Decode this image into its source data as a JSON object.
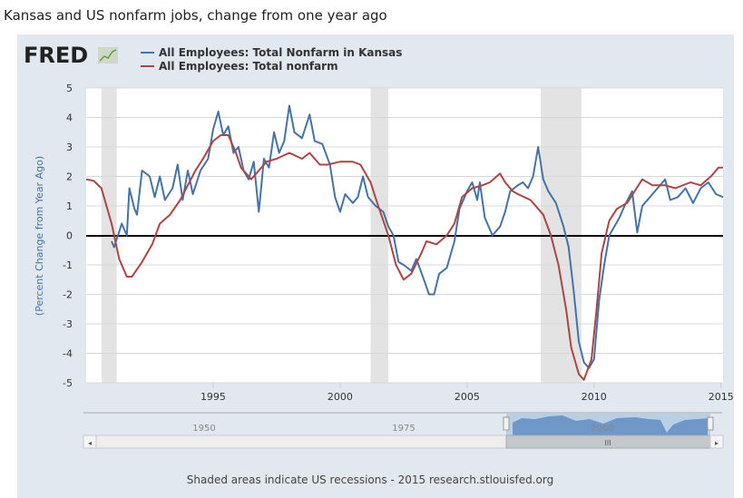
{
  "page_title": "Kansas and US nonfarm jobs, change from one year ago",
  "logo_text": "FRED",
  "footer": "Shaded areas indicate US recessions - 2015 research.stlouisfed.org",
  "navigator": {
    "labels": [
      "1950",
      "1975",
      "2000"
    ],
    "left_arrow": "◂",
    "right_arrow": "▸",
    "grip": "III"
  },
  "colors": {
    "kansas": "#4572a7",
    "us": "#aa4643",
    "recession": "#e3e3e3",
    "panel": "#e1e8ef"
  },
  "chart_data": {
    "type": "line",
    "title": "Kansas and US nonfarm jobs, change from one year ago",
    "xlabel": "",
    "ylabel": "(Percent Change from Year Ago)",
    "xlim": [
      1990.0,
      2015.08
    ],
    "ylim": [
      -5,
      5
    ],
    "yticks": [
      5,
      4,
      3,
      2,
      1,
      0,
      -1,
      -2,
      -3,
      -4,
      -5
    ],
    "xticks": [
      1995,
      2000,
      2005,
      2010,
      2015
    ],
    "legend_position": "top-left",
    "recessions": [
      [
        1990.6,
        1991.2
      ],
      [
        2001.2,
        2001.9
      ],
      [
        2007.9,
        2009.5
      ]
    ],
    "series": [
      {
        "name": "All Employees: Total Nonfarm in Kansas",
        "color": "#4572a7",
        "points": [
          [
            1991.0,
            -0.2
          ],
          [
            1991.1,
            -0.4
          ],
          [
            1991.4,
            0.4
          ],
          [
            1991.6,
            0.0
          ],
          [
            1991.7,
            1.6
          ],
          [
            1991.9,
            0.9
          ],
          [
            1992.0,
            0.7
          ],
          [
            1992.2,
            2.2
          ],
          [
            1992.5,
            2.0
          ],
          [
            1992.7,
            1.3
          ],
          [
            1992.9,
            2.0
          ],
          [
            1993.1,
            1.2
          ],
          [
            1993.4,
            1.6
          ],
          [
            1993.6,
            2.4
          ],
          [
            1993.8,
            1.2
          ],
          [
            1994.0,
            2.2
          ],
          [
            1994.2,
            1.4
          ],
          [
            1994.5,
            2.2
          ],
          [
            1994.8,
            2.6
          ],
          [
            1995.0,
            3.6
          ],
          [
            1995.2,
            4.2
          ],
          [
            1995.4,
            3.4
          ],
          [
            1995.6,
            3.7
          ],
          [
            1995.8,
            2.8
          ],
          [
            1996.0,
            3.0
          ],
          [
            1996.2,
            2.2
          ],
          [
            1996.4,
            1.9
          ],
          [
            1996.6,
            2.5
          ],
          [
            1996.8,
            0.8
          ],
          [
            1997.0,
            2.6
          ],
          [
            1997.2,
            2.3
          ],
          [
            1997.4,
            3.5
          ],
          [
            1997.6,
            2.8
          ],
          [
            1997.8,
            3.2
          ],
          [
            1998.0,
            4.4
          ],
          [
            1998.2,
            3.5
          ],
          [
            1998.5,
            3.3
          ],
          [
            1998.8,
            4.1
          ],
          [
            1999.0,
            3.2
          ],
          [
            1999.3,
            3.1
          ],
          [
            1999.6,
            2.4
          ],
          [
            1999.8,
            1.3
          ],
          [
            2000.0,
            0.8
          ],
          [
            2000.2,
            1.4
          ],
          [
            2000.5,
            1.1
          ],
          [
            2000.7,
            1.3
          ],
          [
            2000.9,
            2.0
          ],
          [
            2001.1,
            1.3
          ],
          [
            2001.4,
            1.0
          ],
          [
            2001.7,
            0.8
          ],
          [
            2001.9,
            0.3
          ],
          [
            2002.1,
            0.0
          ],
          [
            2002.3,
            -0.9
          ],
          [
            2002.5,
            -1.0
          ],
          [
            2002.8,
            -1.2
          ],
          [
            2003.0,
            -0.8
          ],
          [
            2003.3,
            -1.5
          ],
          [
            2003.5,
            -2.0
          ],
          [
            2003.7,
            -2.0
          ],
          [
            2003.9,
            -1.3
          ],
          [
            2004.2,
            -1.1
          ],
          [
            2004.5,
            -0.2
          ],
          [
            2004.7,
            0.9
          ],
          [
            2005.0,
            1.5
          ],
          [
            2005.2,
            1.8
          ],
          [
            2005.4,
            1.2
          ],
          [
            2005.5,
            1.8
          ],
          [
            2005.7,
            0.6
          ],
          [
            2005.9,
            0.2
          ],
          [
            2006.0,
            0.0
          ],
          [
            2006.3,
            0.3
          ],
          [
            2006.5,
            0.8
          ],
          [
            2006.7,
            1.5
          ],
          [
            2007.0,
            1.7
          ],
          [
            2007.2,
            1.8
          ],
          [
            2007.4,
            1.6
          ],
          [
            2007.6,
            2.0
          ],
          [
            2007.8,
            3.0
          ],
          [
            2008.0,
            1.9
          ],
          [
            2008.2,
            1.5
          ],
          [
            2008.5,
            1.1
          ],
          [
            2008.8,
            0.3
          ],
          [
            2009.0,
            -0.4
          ],
          [
            2009.2,
            -1.9
          ],
          [
            2009.4,
            -3.6
          ],
          [
            2009.6,
            -4.3
          ],
          [
            2009.8,
            -4.5
          ],
          [
            2010.0,
            -4.2
          ],
          [
            2010.2,
            -2.2
          ],
          [
            2010.4,
            -1.0
          ],
          [
            2010.6,
            0.0
          ],
          [
            2010.8,
            0.3
          ],
          [
            2011.0,
            0.6
          ],
          [
            2011.2,
            1.0
          ],
          [
            2011.5,
            1.5
          ],
          [
            2011.7,
            0.1
          ],
          [
            2011.9,
            1.0
          ],
          [
            2012.2,
            1.3
          ],
          [
            2012.5,
            1.6
          ],
          [
            2012.8,
            1.9
          ],
          [
            2013.0,
            1.2
          ],
          [
            2013.3,
            1.3
          ],
          [
            2013.6,
            1.6
          ],
          [
            2013.9,
            1.1
          ],
          [
            2014.2,
            1.6
          ],
          [
            2014.5,
            1.8
          ],
          [
            2014.8,
            1.4
          ],
          [
            2015.08,
            1.3
          ]
        ]
      },
      {
        "name": "All Employees: Total nonfarm",
        "color": "#aa4643",
        "points": [
          [
            1990.0,
            1.9
          ],
          [
            1990.3,
            1.85
          ],
          [
            1990.6,
            1.6
          ],
          [
            1991.0,
            0.4
          ],
          [
            1991.3,
            -0.8
          ],
          [
            1991.6,
            -1.4
          ],
          [
            1991.8,
            -1.4
          ],
          [
            1992.2,
            -0.9
          ],
          [
            1992.6,
            -0.3
          ],
          [
            1992.9,
            0.4
          ],
          [
            1993.3,
            0.7
          ],
          [
            1993.7,
            1.2
          ],
          [
            1994.0,
            1.7
          ],
          [
            1994.3,
            2.2
          ],
          [
            1994.6,
            2.6
          ],
          [
            1995.0,
            3.2
          ],
          [
            1995.3,
            3.4
          ],
          [
            1995.6,
            3.4
          ],
          [
            1995.9,
            2.8
          ],
          [
            1996.1,
            2.3
          ],
          [
            1996.5,
            1.9
          ],
          [
            1996.8,
            2.2
          ],
          [
            1997.1,
            2.5
          ],
          [
            1997.5,
            2.6
          ],
          [
            1998.0,
            2.8
          ],
          [
            1998.5,
            2.6
          ],
          [
            1998.8,
            2.8
          ],
          [
            1999.2,
            2.4
          ],
          [
            1999.5,
            2.4
          ],
          [
            2000.0,
            2.5
          ],
          [
            2000.5,
            2.5
          ],
          [
            2000.8,
            2.4
          ],
          [
            2001.2,
            1.8
          ],
          [
            2001.5,
            1.0
          ],
          [
            2001.9,
            0.0
          ],
          [
            2002.2,
            -1.0
          ],
          [
            2002.5,
            -1.5
          ],
          [
            2002.8,
            -1.3
          ],
          [
            2003.2,
            -0.6
          ],
          [
            2003.4,
            -0.2
          ],
          [
            2003.8,
            -0.3
          ],
          [
            2004.2,
            0.0
          ],
          [
            2004.5,
            0.4
          ],
          [
            2004.8,
            1.3
          ],
          [
            2005.2,
            1.6
          ],
          [
            2005.6,
            1.7
          ],
          [
            2005.9,
            1.8
          ],
          [
            2006.3,
            2.1
          ],
          [
            2006.5,
            1.8
          ],
          [
            2006.8,
            1.5
          ],
          [
            2007.0,
            1.4
          ],
          [
            2007.5,
            1.2
          ],
          [
            2007.8,
            0.9
          ],
          [
            2008.0,
            0.7
          ],
          [
            2008.3,
            0.0
          ],
          [
            2008.6,
            -1.0
          ],
          [
            2008.9,
            -2.5
          ],
          [
            2009.1,
            -3.8
          ],
          [
            2009.4,
            -4.7
          ],
          [
            2009.6,
            -4.9
          ],
          [
            2009.9,
            -4.2
          ],
          [
            2010.1,
            -2.5
          ],
          [
            2010.3,
            -0.6
          ],
          [
            2010.6,
            0.5
          ],
          [
            2010.9,
            0.9
          ],
          [
            2011.3,
            1.1
          ],
          [
            2011.6,
            1.5
          ],
          [
            2011.9,
            1.9
          ],
          [
            2012.3,
            1.7
          ],
          [
            2012.8,
            1.7
          ],
          [
            2013.2,
            1.6
          ],
          [
            2013.8,
            1.8
          ],
          [
            2014.2,
            1.7
          ],
          [
            2014.6,
            2.0
          ],
          [
            2014.9,
            2.3
          ],
          [
            2015.08,
            2.3
          ]
        ]
      }
    ]
  }
}
